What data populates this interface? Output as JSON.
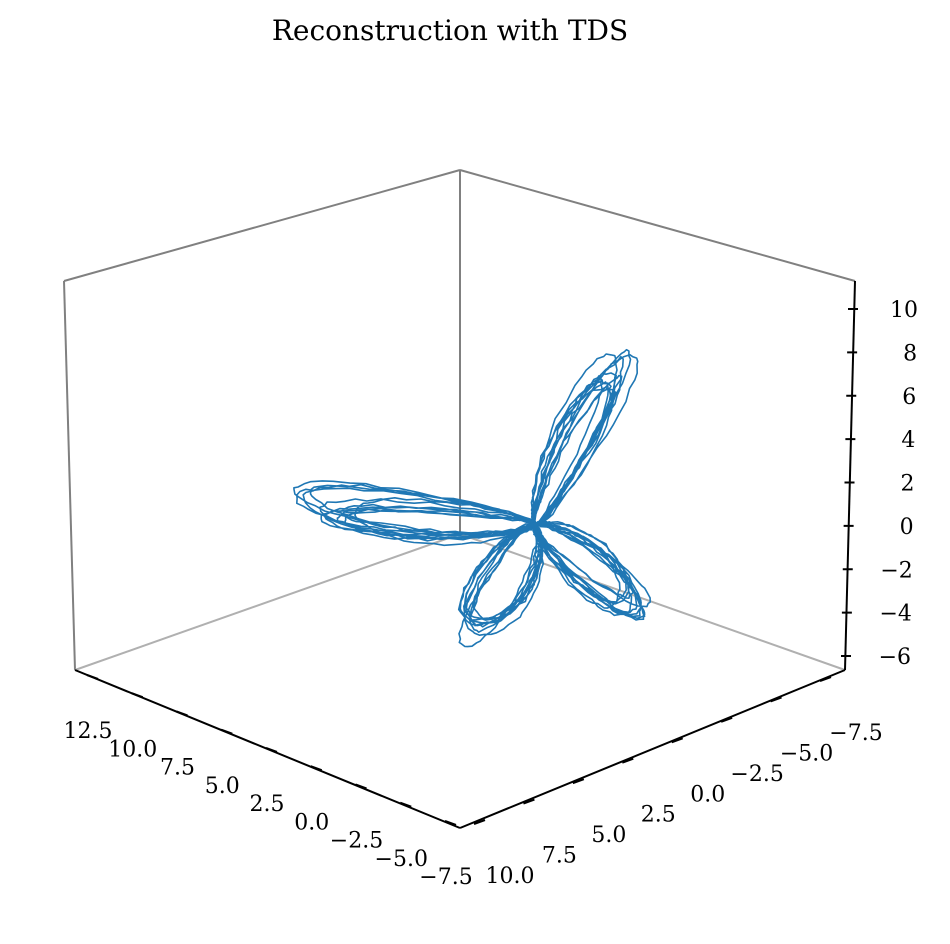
{
  "chart_data": {
    "type": "line",
    "projection": "3d",
    "title": "Reconstruction with TDS",
    "xlabel": "",
    "ylabel": "",
    "zlabel": "",
    "grid": false,
    "series_color": "#1f77b4",
    "x_axis": {
      "range": [
        -7.5,
        12.5
      ],
      "ticks": [
        12.5,
        10.0,
        7.5,
        5.0,
        2.5,
        0.0,
        -2.5,
        -5.0,
        -7.5
      ],
      "tick_labels": [
        "12.5",
        "10.0",
        "7.5",
        "5.0",
        "2.5",
        "0.0",
        "−2.5",
        "−5.0",
        "−7.5"
      ]
    },
    "y_axis": {
      "range": [
        -7.5,
        10.0
      ],
      "ticks": [
        10.0,
        7.5,
        5.0,
        2.5,
        0.0,
        -2.5,
        -5.0,
        -7.5
      ],
      "tick_labels": [
        "10.0",
        "7.5",
        "5.0",
        "2.5",
        "0.0",
        "−2.5",
        "−5.0",
        "−7.5"
      ]
    },
    "z_axis": {
      "range": [
        -7,
        11
      ],
      "ticks": [
        -6,
        -4,
        -2,
        0,
        2,
        4,
        6,
        8,
        10
      ],
      "tick_labels": [
        "−6",
        "−4",
        "−2",
        "0",
        "2",
        "4",
        "6",
        "8",
        "10"
      ]
    },
    "series": [
      {
        "description": "reconstructed attractor trajectory",
        "lobes": [
          {
            "toward": "left",
            "loops": 11
          },
          {
            "toward": "top",
            "loops": 11
          },
          {
            "toward": "bottom",
            "loops": 10
          },
          {
            "toward": "right",
            "loops": 11
          }
        ]
      }
    ]
  }
}
